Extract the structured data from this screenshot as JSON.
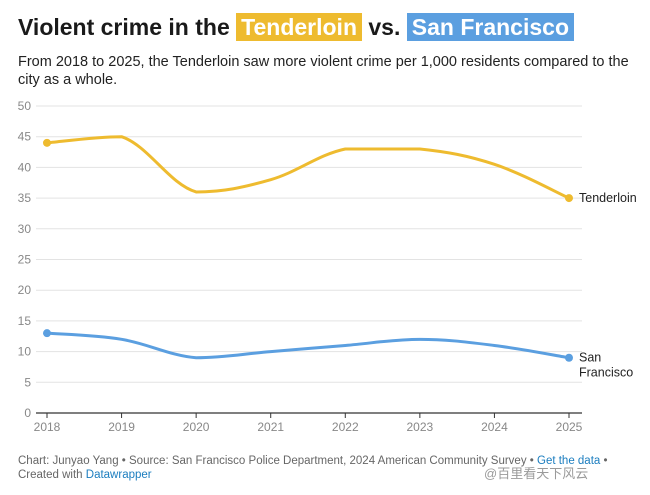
{
  "title": {
    "prefix": "Violent crime in the",
    "highlight1": "Tenderloin",
    "middle": "vs.",
    "highlight2": "San Francisco"
  },
  "subtitle": "From 2018 to 2025, the Tenderloin saw more violent crime per 1,000 residents compared to the city as a whole.",
  "colors": {
    "tenderloin": "#eebb2f",
    "san_francisco": "#5b9fe0",
    "grid": "#e3e3e3",
    "axis_text": "#888888"
  },
  "chart_data": {
    "type": "line",
    "title": "Violent crime in the Tenderloin vs. San Francisco",
    "xlabel": "",
    "ylabel": "",
    "x": [
      "2018",
      "2019",
      "2020",
      "2021",
      "2022",
      "2023",
      "2024",
      "2025"
    ],
    "ylim": [
      0,
      50
    ],
    "yticks": [
      0,
      5,
      10,
      15,
      20,
      25,
      30,
      35,
      40,
      45,
      50
    ],
    "grid": true,
    "series": [
      {
        "name": "Tenderloin",
        "label": "Tenderloin",
        "values": [
          44,
          45,
          36,
          38,
          43,
          43,
          40.5,
          35
        ]
      },
      {
        "name": "San Francisco",
        "label": "San Francisco",
        "values": [
          13,
          12,
          9,
          10,
          11,
          12,
          11,
          9
        ]
      }
    ]
  },
  "footer": {
    "text": "Chart: Junyao Yang • Source: San Francisco Police Department, 2024 American Community Survey •",
    "link1": "Get the data",
    "sep": "• Created with",
    "link2": "Datawrapper"
  },
  "watermark": "@百里看天下风云"
}
